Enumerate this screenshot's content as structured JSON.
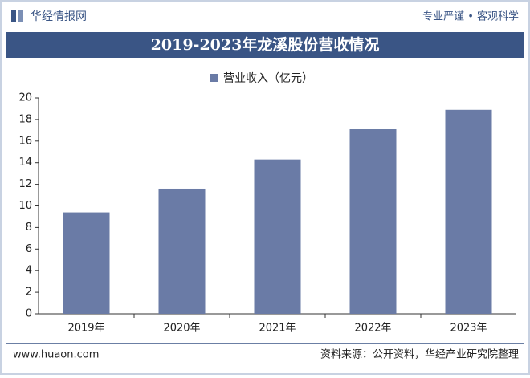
{
  "header": {
    "brand": "华经情报网",
    "slogan": "专业严谨 • 客观科学"
  },
  "footer": {
    "website": "www.huaon.com",
    "source": "资料来源：公开资料，华经产业研究院整理"
  },
  "chart_data": {
    "type": "bar",
    "title": "2019-2023年龙溪股份营收情况",
    "categories": [
      "2019年",
      "2020年",
      "2021年",
      "2022年",
      "2023年"
    ],
    "series": [
      {
        "name": "营业收入（亿元）",
        "color": "#6a7ba6",
        "values": [
          9.4,
          11.6,
          14.3,
          17.1,
          18.9
        ]
      }
    ],
    "ylim": [
      0,
      20
    ],
    "yticks": [
      0,
      2,
      4,
      6,
      8,
      10,
      12,
      14,
      16,
      18,
      20
    ],
    "grid": false,
    "legend": "top"
  }
}
